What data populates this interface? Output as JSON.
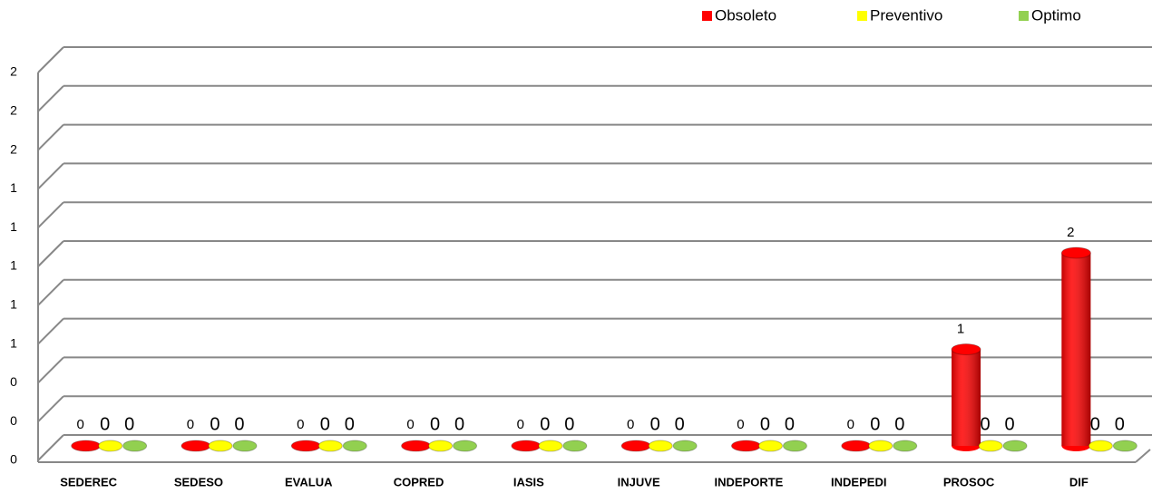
{
  "chart_data": {
    "type": "bar",
    "categories": [
      "SEDEREC",
      "SEDESO",
      "EVALUA",
      "COPRED",
      "IASIS",
      "INJUVE",
      "INDEPORTE",
      "INDEPEDI",
      "PROSOC",
      "DIF"
    ],
    "series": [
      {
        "name": "Obsoleto",
        "color": "#ff0000",
        "values": [
          0,
          0,
          0,
          0,
          0,
          0,
          0,
          0,
          1,
          2
        ]
      },
      {
        "name": "Preventivo",
        "color": "#ffff00",
        "values": [
          0,
          0,
          0,
          0,
          0,
          0,
          0,
          0,
          0,
          0
        ]
      },
      {
        "name": "Optimo",
        "color": "#92d050",
        "values": [
          0,
          0,
          0,
          0,
          0,
          0,
          0,
          0,
          0,
          0
        ]
      }
    ],
    "ylim": [
      0,
      2
    ],
    "yticks": [
      0,
      {
        "value": 0.2,
        "label": "0"
      },
      {
        "value": 0.4,
        "label": "0"
      },
      {
        "value": 0.6,
        "label": "1"
      },
      {
        "value": 0.8,
        "label": "1"
      },
      1,
      {
        "value": 1.2,
        "label": "1"
      },
      {
        "value": 1.4,
        "label": "1"
      },
      {
        "value": 1.6,
        "label": "2"
      },
      {
        "value": 1.8,
        "label": "2"
      },
      2
    ],
    "grid": true,
    "legend": "top-right"
  }
}
